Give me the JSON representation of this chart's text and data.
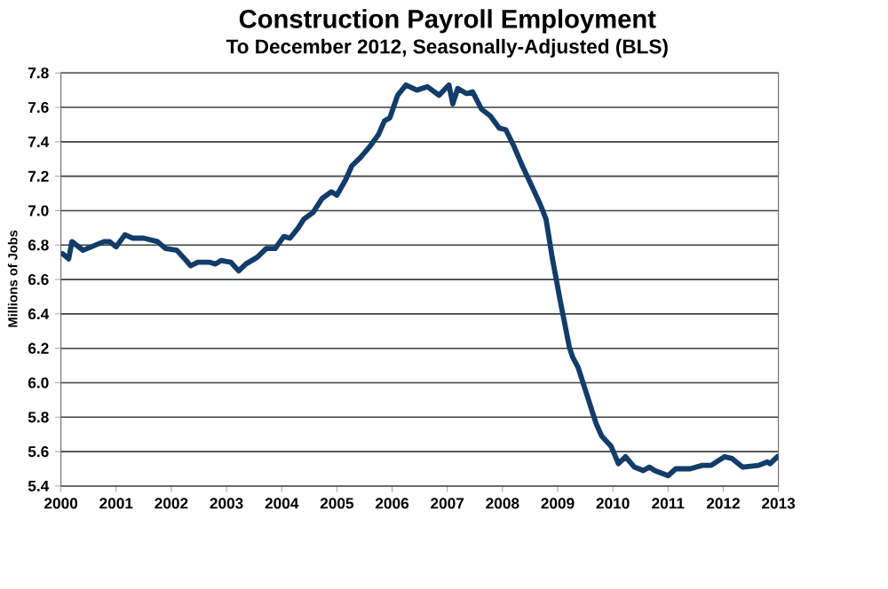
{
  "chart_data": {
    "type": "line",
    "title": "Construction Payroll Employment",
    "subtitle": "To December 2012, Seasonally-Adjusted (BLS)",
    "ylabel": "Millions of Jobs",
    "x": [
      2000.03,
      2000.14,
      2000.2,
      2000.4,
      2000.78,
      2000.88,
      2001.0,
      2001.16,
      2001.3,
      2001.5,
      2001.75,
      2001.9,
      2002.1,
      2002.27,
      2002.35,
      2002.48,
      2002.7,
      2002.8,
      2002.9,
      2003.08,
      2003.22,
      2003.35,
      2003.56,
      2003.72,
      2003.88,
      2004.04,
      2004.15,
      2004.3,
      2004.4,
      2004.57,
      2004.73,
      2004.9,
      2005.0,
      2005.16,
      2005.27,
      2005.43,
      2005.59,
      2005.75,
      2005.86,
      2005.96,
      2006.1,
      2006.25,
      2006.45,
      2006.64,
      2006.85,
      2007.03,
      2007.1,
      2007.19,
      2007.35,
      2007.46,
      2007.62,
      2007.78,
      2007.94,
      2008.06,
      2008.2,
      2008.36,
      2008.55,
      2008.68,
      2008.79,
      2008.9,
      2009.05,
      2009.21,
      2009.27,
      2009.37,
      2009.53,
      2009.7,
      2009.8,
      2009.97,
      2010.1,
      2010.23,
      2010.39,
      2010.55,
      2010.66,
      2010.76,
      2011.0,
      2011.14,
      2011.4,
      2011.62,
      2011.78,
      2012.02,
      2012.16,
      2012.35,
      2012.64,
      2012.8,
      2012.85,
      2012.98
    ],
    "series": [
      {
        "color": "#123c69",
        "values": [
          6.75,
          6.72,
          6.82,
          6.77,
          6.82,
          6.82,
          6.79,
          6.86,
          6.84,
          6.84,
          6.82,
          6.78,
          6.77,
          6.71,
          6.68,
          6.7,
          6.7,
          6.69,
          6.71,
          6.7,
          6.65,
          6.69,
          6.73,
          6.78,
          6.78,
          6.85,
          6.84,
          6.9,
          6.95,
          6.99,
          7.07,
          7.11,
          7.09,
          7.18,
          7.26,
          7.31,
          7.37,
          7.44,
          7.52,
          7.54,
          7.67,
          7.73,
          7.7,
          7.72,
          7.67,
          7.73,
          7.62,
          7.71,
          7.68,
          7.69,
          7.59,
          7.55,
          7.48,
          7.47,
          7.38,
          7.26,
          7.13,
          7.04,
          6.95,
          6.73,
          6.47,
          6.21,
          6.15,
          6.09,
          5.93,
          5.76,
          5.69,
          5.63,
          5.53,
          5.57,
          5.51,
          5.49,
          5.51,
          5.49,
          5.46,
          5.5,
          5.5,
          5.52,
          5.52,
          5.57,
          5.56,
          5.51,
          5.52,
          5.54,
          5.53,
          5.57
        ]
      }
    ],
    "xlim": [
      2000,
      2013
    ],
    "xticks": [
      2000,
      2001,
      2002,
      2003,
      2004,
      2005,
      2006,
      2007,
      2008,
      2009,
      2010,
      2011,
      2012,
      2013
    ],
    "ylim": [
      5.4,
      7.8
    ],
    "yticks": [
      5.4,
      5.6,
      5.8,
      {
        "value": 6.0,
        "label": "6.0"
      },
      6.2,
      6.4,
      6.6,
      6.8,
      {
        "value": 7.0,
        "label": "7.0"
      },
      7.2,
      7.4,
      7.6,
      7.8
    ],
    "grid": "y",
    "marker": "none",
    "line_style": "solid"
  }
}
